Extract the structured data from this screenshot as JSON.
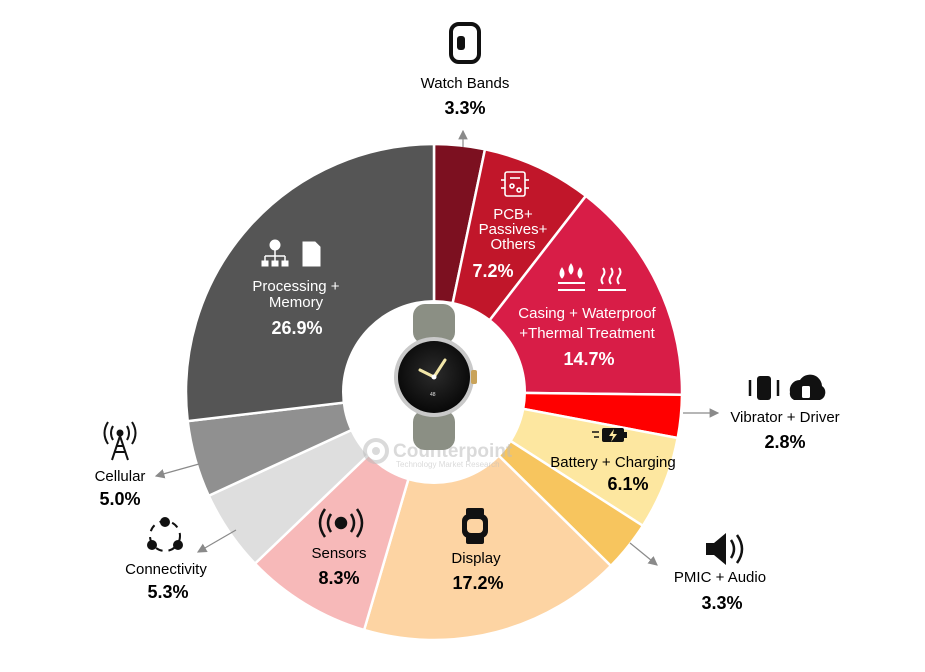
{
  "chart_data": {
    "type": "pie",
    "subtype": "donut",
    "title": "",
    "slices": [
      {
        "label": "Watch Bands",
        "value": 3.3,
        "display": "3.3%",
        "color": "#7c1020"
      },
      {
        "label": "PCB+ Passives+ Others",
        "value": 7.2,
        "display": "7.2%",
        "color": "#c1162a"
      },
      {
        "label": "Casing + Waterproof +Thermal Treatment",
        "value": 14.7,
        "display": "14.7%",
        "color": "#d81d47"
      },
      {
        "label": "Vibrator + Driver",
        "value": 2.8,
        "display": "2.8%",
        "color": "#ff0000"
      },
      {
        "label": "Battery + Charging",
        "value": 6.1,
        "display": "6.1%",
        "color": "#fde7a0"
      },
      {
        "label": "PMIC + Audio",
        "value": 3.3,
        "display": "3.3%",
        "color": "#f7c55e"
      },
      {
        "label": "Display",
        "value": 17.2,
        "display": "17.2%",
        "color": "#fdd4a3"
      },
      {
        "label": "Sensors",
        "value": 8.3,
        "display": "8.3%",
        "color": "#f7b9b9"
      },
      {
        "label": "Connectivity",
        "value": 5.3,
        "display": "5.3%",
        "color": "#dedede"
      },
      {
        "label": "Cellular",
        "value": 5.0,
        "display": "5.0%",
        "color": "#909090"
      },
      {
        "label": "Processing + Memory",
        "value": 26.9,
        "display": "26.9%",
        "color": "#555555"
      }
    ]
  },
  "labels": {
    "watch_bands": {
      "l1": "Watch Bands",
      "pct": "3.3%",
      "icon": "watch-band-icon"
    },
    "pcb": {
      "l1": "PCB+",
      "l2": "Passives+",
      "l3": "Others",
      "pct": "7.2%",
      "icon": "circuit-board-icon"
    },
    "casing": {
      "l1": "Casing + Waterproof",
      "l2": "+Thermal Treatment",
      "pct": "14.7%",
      "icon": "water-heat-icon"
    },
    "vibrator": {
      "l1": "Vibrator + Driver",
      "pct": "2.8%",
      "icon": "vibration-icon"
    },
    "battery": {
      "l1": "Battery + Charging",
      "pct": "6.1%",
      "icon": "battery-charging-icon"
    },
    "pmic": {
      "l1": "PMIC + Audio",
      "pct": "3.3%",
      "icon": "speaker-icon"
    },
    "display": {
      "l1": "Display",
      "pct": "17.2%",
      "icon": "smartwatch-icon"
    },
    "sensors": {
      "l1": "Sensors",
      "pct": "8.3%",
      "icon": "sensor-icon"
    },
    "connectivity": {
      "l1": "Connectivity",
      "pct": "5.3%",
      "icon": "connectivity-icon"
    },
    "cellular": {
      "l1": "Cellular",
      "pct": "5.0%",
      "icon": "cell-tower-icon"
    },
    "processing": {
      "l1": "Processing +",
      "l2": "Memory",
      "pct": "26.9%",
      "icon": "processor-memory-icon"
    }
  },
  "watermark": {
    "brand": "Counterpoint",
    "tagline": "Technology Market Research"
  },
  "center_image": {
    "icon": "pixel-watch-icon"
  }
}
